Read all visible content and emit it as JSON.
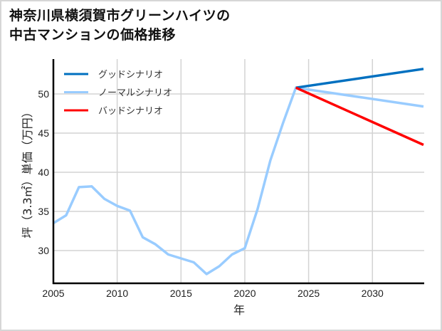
{
  "title_line1": "神奈川県横須賀市グリーンハイツの",
  "title_line2": "中古マンションの価格推移",
  "chart_data": {
    "type": "line",
    "title": "神奈川県横須賀市グリーンハイツの中古マンションの価格推移",
    "xlabel": "年",
    "ylabel": "坪（3.3㎡）単価（万円）",
    "xlim": [
      2005,
      2034
    ],
    "ylim": [
      25.5,
      55
    ],
    "xticks": [
      2005,
      2010,
      2015,
      2020,
      2025,
      2030
    ],
    "yticks": [
      30,
      35,
      40,
      45,
      50
    ],
    "grid": true,
    "legend_position": "upper left",
    "series": [
      {
        "name": "グッドシナリオ",
        "color": "#0070c0",
        "x": [
          2024,
          2034
        ],
        "values": [
          50.8,
          53.2
        ]
      },
      {
        "name": "ノーマルシナリオ",
        "color": "#99ccff",
        "x": [
          2005,
          2006,
          2007,
          2008,
          2009,
          2010,
          2011,
          2012,
          2013,
          2014,
          2015,
          2016,
          2017,
          2018,
          2019,
          2020,
          2021,
          2022,
          2023,
          2024,
          2034
        ],
        "values": [
          33.5,
          34.5,
          38.1,
          38.2,
          36.6,
          35.7,
          35.1,
          31.7,
          30.8,
          29.5,
          29.0,
          28.5,
          27.0,
          28.0,
          29.5,
          30.3,
          35.3,
          41.5,
          46.3,
          50.8,
          48.4
        ]
      },
      {
        "name": "バッドシナリオ",
        "color": "#ff0000",
        "x": [
          2024,
          2034
        ],
        "values": [
          50.8,
          43.5
        ]
      }
    ]
  }
}
